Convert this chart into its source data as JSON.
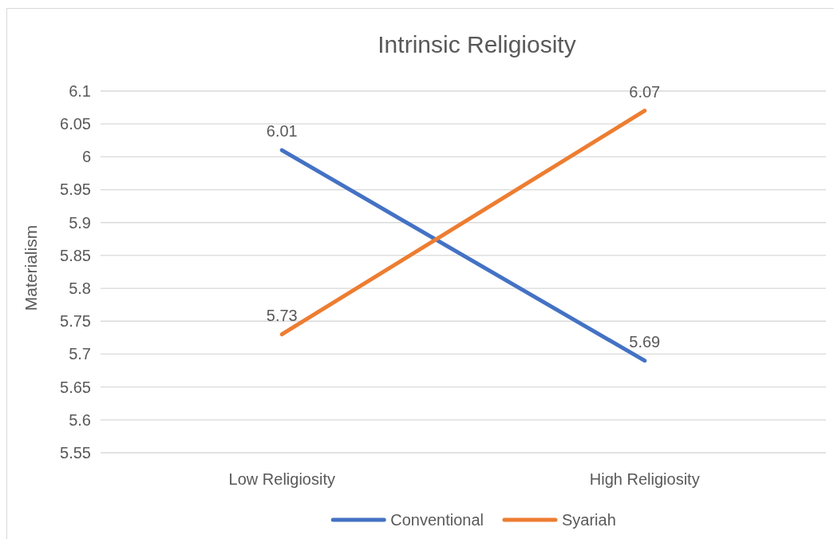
{
  "chart_data": {
    "type": "line",
    "title": "Intrinsic Religiosity",
    "ylabel": "Materialism",
    "categories": [
      "Low Religiosity",
      "High Religiosity"
    ],
    "series": [
      {
        "name": "Conventional",
        "color": "#4472c4",
        "values": [
          6.01,
          5.69
        ]
      },
      {
        "name": "Syariah",
        "color": "#ed7d31",
        "values": [
          5.73,
          6.07
        ]
      }
    ],
    "ylim": [
      5.55,
      6.1
    ],
    "yticks": [
      5.55,
      5.6,
      5.65,
      5.7,
      5.75,
      5.8,
      5.85,
      5.9,
      5.95,
      6,
      6.05,
      6.1
    ],
    "grid": "y",
    "legend": "bottom",
    "data_labels": true,
    "marker": "none",
    "line_style": "solid"
  }
}
